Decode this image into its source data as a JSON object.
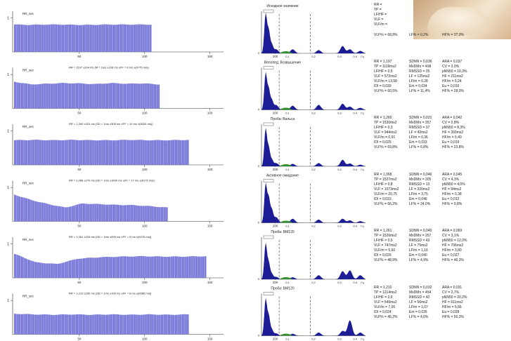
{
  "colors": {
    "bar_fill": "#6f6fd6",
    "bar_dark": "#3d3da6",
    "spectrum_fill": "#1c1c96",
    "spectrum_green": "#2f8f2f",
    "axis": "#333333",
    "dashed_line": "#555555"
  },
  "chart_data": [
    {
      "type": "bar",
      "row": 1,
      "corner_label": "RR_sec",
      "ytick": "1",
      "xticks": [
        "50",
        "100",
        "150",
        "200"
      ],
      "rr_profile": [
        0.8,
        0.79,
        0.8,
        0.8,
        0.79,
        0.79,
        0.8,
        0.8,
        0.8,
        0.8
      ],
      "n_beats": 118,
      "ylim": [
        0,
        1.2
      ],
      "spectrum_title": "Исходное значение",
      "spectrum_peaks": [
        0.97,
        0.55,
        0.2,
        0.1,
        0.1,
        0.08,
        0.18,
        0.1,
        0.06
      ],
      "stats": [
        "RR =",
        "TP =",
        "LF/HF =",
        "VLF =",
        "VLF/m =",
        "",
        "VLF% = 68,8%",
        "LF% = 0,2%",
        "HF% = 37,3%"
      ]
    },
    {
      "type": "bar",
      "row": 2,
      "corner_label": "RR_sec",
      "subtitle": "RR = 1197 ±204 ms (M = 1ms ±106 ms ±FF = 8 ms ±(0775 ms))",
      "ytick": "1",
      "xticks": [
        "50",
        "100",
        "150",
        "200"
      ],
      "rr_profile": [
        0.78,
        0.7,
        0.72,
        0.74,
        0.73,
        0.71,
        0.74,
        0.72,
        0.73,
        0.7
      ],
      "n_beats": 125,
      "ylim": [
        0,
        1.2
      ],
      "spectrum_title": "Велопед: Возвышение",
      "spectrum_peaks": [
        0.9,
        0.5,
        0.22,
        0.12,
        0.1,
        0.12,
        0.15,
        0.08,
        0.05
      ],
      "stats": [
        "RR = 1,197",
        "SDNN = 0,036",
        "ARA = 0,037",
        "TP = 1119ms2",
        "MxDMn = 408",
        "CV = 3,0%",
        "LF/HF = 0,5",
        "RMSSD = 25",
        "pNN50 = 10,3%",
        "VLF = 572ms2",
        "LF = 125ms2",
        "HF = 211ms2",
        "VLF/m = 13,58",
        "LF/m = 0,28",
        "HF/m = 5,24",
        "IDI = 0,039",
        "Em = 0,034",
        "Eu = 0,016",
        "VLF% = 60,5%",
        "LF% = 11,4%",
        "HF% = 28,0%"
      ]
    },
    {
      "type": "bar",
      "row": 3,
      "corner_label": "RR_sec",
      "subtitle": "RR = 1,260 ±324 ms (SD = 1ms ±308 ms ±FF = 10 ms ±(6334 ms))",
      "ytick": "1",
      "xticks": [
        "50",
        "100",
        "150",
        "200"
      ],
      "rr_profile": [
        0.72,
        0.73,
        0.72,
        0.73,
        0.72,
        0.72,
        0.73,
        0.72,
        0.72,
        0.73
      ],
      "n_beats": 150,
      "ylim": [
        0,
        1.2
      ],
      "spectrum_title": "Проба: Вальса",
      "spectrum_peaks": [
        0.92,
        0.45,
        0.15,
        0.08,
        0.06,
        0.08,
        0.16,
        0.07,
        0.04
      ],
      "stats": [
        "RR = 1,260",
        "SDNN = 0,031",
        "ARA = 0,042",
        "TP = 1530ms2",
        "MxDMn = 357",
        "CV = 2,8%",
        "LF/HF = 0,3",
        "RMSSD = 37",
        "pNN50 = 8,3%",
        "VLF = 944ms2",
        "LF = 42ms2",
        "HF = 393ms2",
        "VLF/m = 0,91",
        "LF/m = 0,36",
        "HF/m = 5,40",
        "IDI = 0,025",
        "Em = 0,033",
        "Eu = 0,019",
        "VLF% = 69,8%",
        "LF% = 6,8%",
        "HF% = 23,8%"
      ]
    },
    {
      "type": "bar",
      "row": 4,
      "corner_label": "RR_sec",
      "subtitle": "RR = 1,068 ±270 ms (SD = 1ms ±1600 ms ±FF = 17 ms ±(6175 ms))",
      "ytick": "1",
      "xticks": [
        "50",
        "100",
        "150",
        "200"
      ],
      "rr_profile": [
        0.78,
        0.62,
        0.5,
        0.4,
        0.52,
        0.5,
        0.48,
        0.47,
        0.44,
        0.4
      ],
      "n_beats": 132,
      "ylim": [
        0,
        1.2
      ],
      "spectrum_title": "Активное ожидание",
      "spectrum_peaks": [
        0.95,
        0.6,
        0.3,
        0.14,
        0.1,
        0.08,
        0.1,
        0.06,
        0.04
      ],
      "stats": [
        "RR = 1,068",
        "SDNN = 0,046",
        "ARA = 0,045",
        "TP = 1527ms2",
        "MxDMn = 305",
        "CV = 4,3%",
        "LF/HF = 0,8",
        "RMSSD = 13",
        "pNN50 = 4,0%",
        "VLF = 1073ms2",
        "LF = 320ms2",
        "HF = 94ms2",
        "VLF/m = 20,75",
        "LF/m = 3,75",
        "HF/m = 0,38",
        "IDI = 0,033",
        "Em = 0,046",
        "Eu = 0,012",
        "VLF% = 66,2%",
        "LF% = 24,0%",
        "HF% = 9,8%"
      ]
    },
    {
      "type": "bar",
      "row": 5,
      "corner_label": "RR_sec",
      "subtitle": "RR = 1,261 ±205 ms (SD = 1ms ±005 ms ±FF = 9 ms ±(6075 ms))",
      "ytick": "1",
      "xticks": [
        "50",
        "100",
        "150",
        "200"
      ],
      "rr_profile": [
        0.7,
        0.45,
        0.4,
        0.56,
        0.6,
        0.62,
        0.63,
        0.62,
        0.62,
        0.63
      ],
      "n_beats": 165,
      "ylim": [
        0,
        1.2
      ],
      "spectrum_title": "Проба: ВМ120",
      "spectrum_peaks": [
        0.88,
        0.4,
        0.12,
        0.06,
        0.05,
        0.1,
        0.2,
        0.22,
        0.1
      ],
      "stats": [
        "RR = 1,261",
        "SDNN = 0,040",
        "ARA = 0,069",
        "TP = 1526ms2",
        "MxDMn = 357",
        "CV = 3,1%",
        "LF/HF = 0,5",
        "RMSSD = 43",
        "pNN50 = 12,0%",
        "VLF = 747ms2",
        "LF = 75ms2",
        "HF = 706ms2",
        "VLF/m = 5,60",
        "LF/m = 1,16",
        "HF/m = 3,80",
        "IDI = 0,026",
        "Em = 0,040",
        "Eu = 0,027",
        "VLF% = 48,9%",
        "LF% = 4,9%",
        "HF% = 46,3%"
      ]
    },
    {
      "type": "bar",
      "row": 6,
      "corner_label": "RR_sec",
      "subtitle": "RR = 1,210 ±290 ms (SD = 1ms ±100 ms ±FF = 8 ms ±(6085 ms))",
      "ytick": "1",
      "xticks": [
        "50",
        "100",
        "150",
        "200"
      ],
      "rr_profile": [
        0.6,
        0.58,
        0.57,
        0.58,
        0.57,
        0.58,
        0.57,
        0.58,
        0.57,
        0.58
      ],
      "n_beats": 150,
      "ylim": [
        0,
        1.2
      ],
      "spectrum_title": "Проба: ВМ120",
      "spectrum_peaks": [
        0.9,
        0.48,
        0.14,
        0.06,
        0.05,
        0.08,
        0.12,
        0.38,
        0.08
      ],
      "stats": [
        "RR = 1,210",
        "SDNN = 0,032",
        "ARA = 0,031",
        "TP = 1214ms2",
        "MxDMn = 454",
        "CV = 2,7%",
        "LF/HF = 0,6",
        "RMSSD = 42",
        "pNN50 = 20,2%",
        "VLF = 549ms2",
        "LF = 56ms2",
        "HF = 611ms2",
        "VLF/m = 7,05",
        "LF/m = 1,07",
        "HF/m = 5,66",
        "IDI = 0,024",
        "Em = 0,035",
        "Eu = 0,028",
        "VLF% = 45,2%",
        "LF% = 4,6%",
        "HF% = 50,3%"
      ]
    }
  ],
  "spectrum_xticks": [
    "0,1",
    "0,2",
    "0,3",
    "0,4",
    "Гц"
  ],
  "spectrum_ytick": "0"
}
